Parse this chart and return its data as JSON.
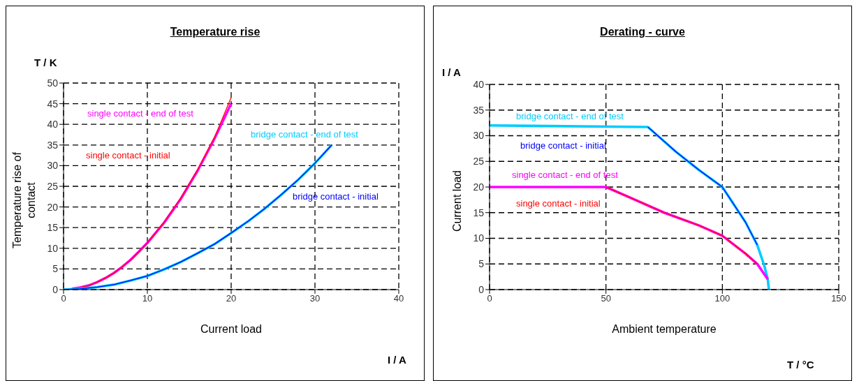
{
  "chart_data": [
    {
      "type": "line",
      "title": "Temperature rise",
      "xlabel": "Current load",
      "ylabel": "Temperature rise of contact",
      "annotations": [
        "T / K",
        "I / A"
      ],
      "xlim": [
        0,
        40
      ],
      "xticks": [
        0,
        10,
        20,
        30,
        40
      ],
      "ylim": [
        0,
        50
      ],
      "yticks": [
        0,
        5,
        10,
        15,
        20,
        25,
        30,
        35,
        40,
        45,
        50
      ],
      "grid": true,
      "legend": false,
      "marker": "none",
      "line_style": "solid",
      "series": [
        {
          "name": "single contact - end of test",
          "color": "#ff00ff",
          "x": [
            1,
            2,
            3,
            4,
            5,
            6,
            7,
            8,
            9,
            10,
            12,
            14,
            16,
            18,
            20
          ],
          "values": [
            0.2,
            0.5,
            1,
            1.8,
            2.8,
            4,
            5.5,
            7.2,
            9.2,
            11.3,
            16.2,
            22,
            28.8,
            36.5,
            45
          ]
        },
        {
          "name": "single contact - initial",
          "color": "#ff0000",
          "x": [
            1,
            2,
            3,
            4,
            5,
            6,
            7,
            8,
            9,
            10,
            12,
            14,
            16,
            18,
            20
          ],
          "values": [
            0.2,
            0.5,
            1,
            1.8,
            2.8,
            4,
            5.5,
            7.2,
            9.2,
            11.3,
            16.3,
            22.2,
            29,
            36.8,
            46.5
          ]
        },
        {
          "name": "bridge contact - end of test",
          "color": "#00ccff",
          "x": [
            0,
            2,
            4,
            6,
            8,
            10,
            12,
            14,
            16,
            18,
            20,
            22,
            24,
            26,
            28,
            30,
            32
          ],
          "values": [
            0,
            0.2,
            0.6,
            1.2,
            2.2,
            3.3,
            4.9,
            6.7,
            8.8,
            11,
            13.7,
            16.5,
            19.6,
            23,
            26.6,
            30.6,
            35
          ]
        },
        {
          "name": "bridge contact - initial",
          "color": "#0000ff",
          "x": [
            0,
            2,
            4,
            6,
            8,
            10,
            12,
            14,
            16,
            18,
            20,
            22,
            24,
            26,
            28,
            30,
            32
          ],
          "values": [
            0,
            0.2,
            0.6,
            1.2,
            2.2,
            3.3,
            4.9,
            6.7,
            8.8,
            11,
            13.7,
            16.5,
            19.6,
            23,
            26.6,
            30.6,
            35
          ]
        }
      ]
    },
    {
      "type": "line",
      "title": "Derating - curve",
      "xlabel": "Ambient temperature",
      "ylabel": "Current load",
      "annotations": [
        "I / A",
        "T / °C"
      ],
      "xlim": [
        0,
        150
      ],
      "xticks": [
        0,
        50,
        100,
        150
      ],
      "ylim": [
        0,
        40
      ],
      "yticks": [
        0,
        5,
        10,
        15,
        20,
        25,
        30,
        35,
        40
      ],
      "grid": true,
      "legend": false,
      "marker": "none",
      "line_style": "solid",
      "series": [
        {
          "name": "bridge contact - end of test",
          "color": "#00ccff",
          "x": [
            0,
            68,
            80,
            90,
            100,
            110,
            115,
            118,
            119.5,
            120
          ],
          "values": [
            32,
            31.7,
            26.9,
            23.3,
            20,
            13.1,
            8.7,
            4.7,
            2,
            0
          ]
        },
        {
          "name": "bridge contact - initial",
          "color": "#0000ff",
          "x": [
            68,
            80,
            90,
            100,
            110,
            115
          ],
          "values": [
            31.7,
            26.9,
            23.3,
            20,
            13.1,
            8.7
          ]
        },
        {
          "name": "single contact - end of test",
          "color": "#ff00ff",
          "x": [
            0,
            50,
            60,
            75,
            90,
            100,
            110,
            115,
            119.5
          ],
          "values": [
            20,
            20,
            18,
            15,
            12.5,
            10.5,
            7,
            5,
            2
          ]
        },
        {
          "name": "single contact - initial",
          "color": "#ff0000",
          "x": [
            50,
            60,
            75,
            90,
            100,
            110,
            115
          ],
          "values": [
            20,
            18,
            15,
            12.5,
            10.5,
            7,
            5
          ]
        }
      ]
    }
  ]
}
